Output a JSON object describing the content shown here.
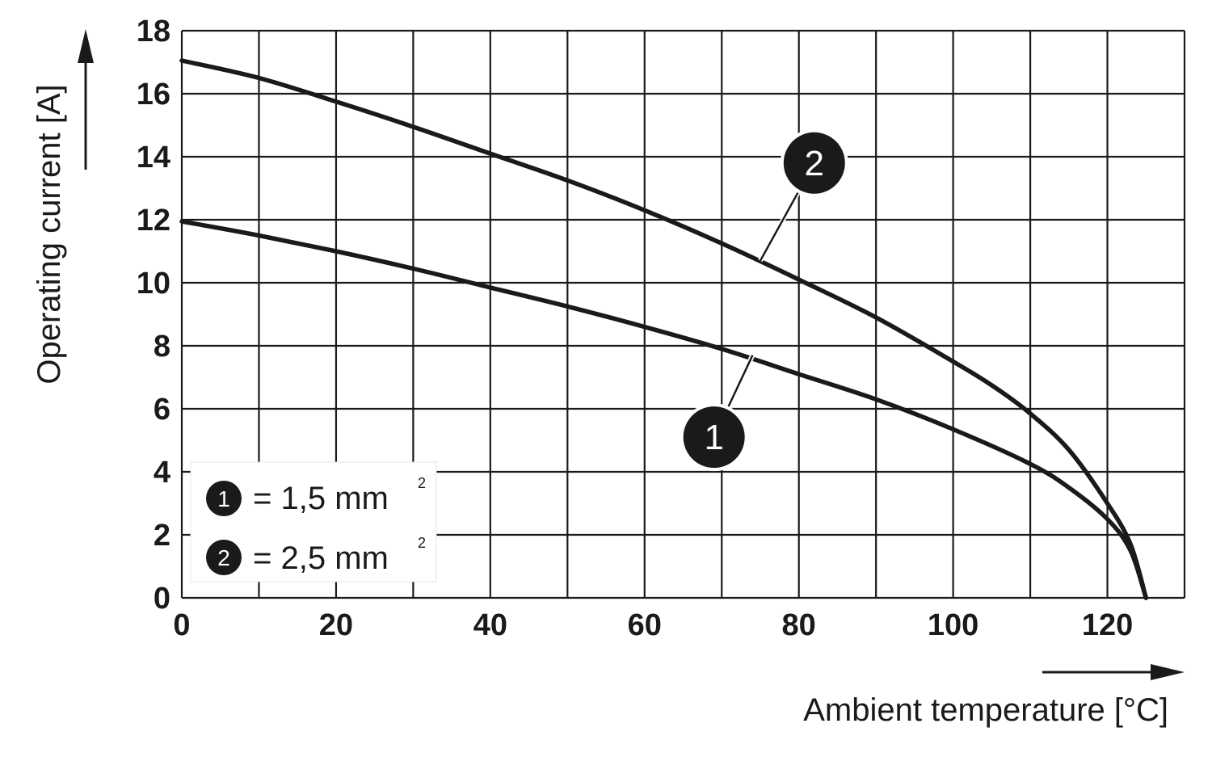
{
  "chart_data": {
    "type": "line",
    "xlabel": "Ambient temperature [°C]",
    "ylabel": "Operating current [A]",
    "xlim": [
      0,
      130
    ],
    "ylim": [
      0,
      18
    ],
    "x_ticks": [
      "0",
      "20",
      "40",
      "60",
      "80",
      "100",
      "120"
    ],
    "y_ticks": [
      "0",
      "2",
      "4",
      "6",
      "8",
      "10",
      "12",
      "14",
      "16",
      "18"
    ],
    "grid": true,
    "legend_placement": "bottom-left",
    "series": [
      {
        "name": "1",
        "legend_label": "= 1,5 mm",
        "legend_sup": "2",
        "color": "#1a1a1a",
        "x": [
          0,
          10,
          20,
          30,
          40,
          50,
          60,
          70,
          80,
          90,
          100,
          110,
          115,
          120,
          123,
          125
        ],
        "y": [
          11.95,
          11.5,
          11.0,
          10.45,
          9.85,
          9.25,
          8.6,
          7.9,
          7.1,
          6.3,
          5.35,
          4.25,
          3.5,
          2.5,
          1.5,
          0.0
        ]
      },
      {
        "name": "2",
        "legend_label": "= 2,5 mm",
        "legend_sup": "2",
        "color": "#1a1a1a",
        "x": [
          0,
          10,
          20,
          30,
          40,
          50,
          60,
          70,
          80,
          90,
          100,
          105,
          110,
          115,
          120,
          123,
          125
        ],
        "y": [
          17.05,
          16.5,
          15.75,
          14.95,
          14.1,
          13.25,
          12.3,
          11.25,
          10.1,
          8.9,
          7.5,
          6.75,
          5.85,
          4.7,
          3.0,
          1.7,
          0.0
        ]
      }
    ],
    "markers": [
      {
        "label": "1",
        "series_index": 0,
        "anchor_x": 74,
        "anchor_y": 7.7,
        "x": 69,
        "y": 5.1
      },
      {
        "label": "2",
        "series_index": 1,
        "anchor_x": 75,
        "anchor_y": 10.7,
        "x": 82,
        "y": 13.8
      }
    ]
  }
}
